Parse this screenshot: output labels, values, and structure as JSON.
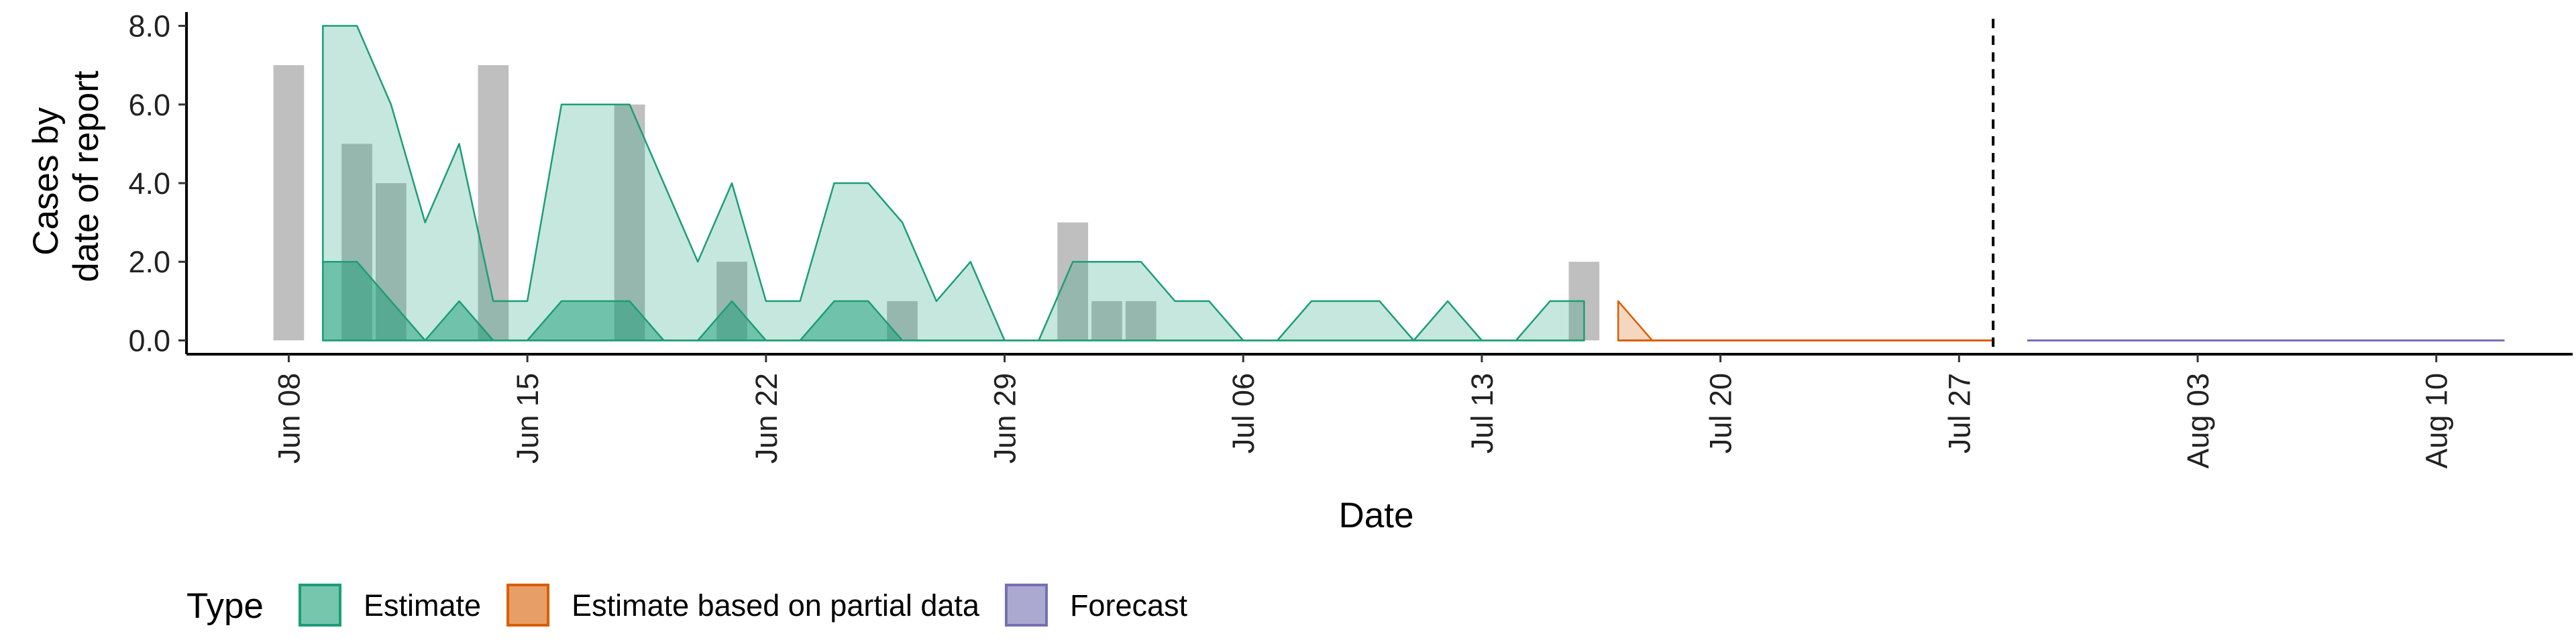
{
  "chart_data": {
    "type": "area",
    "xlabel": "Date",
    "ylabel": [
      "Cases by",
      "date of report"
    ],
    "x_ticks": [
      "Jun 08",
      "Jun 15",
      "Jun 22",
      "Jun 29",
      "Jul 06",
      "Jul 13",
      "Jul 20",
      "Jul 27",
      "Aug 03",
      "Aug 10"
    ],
    "y_ticks": [
      "0.0",
      "2.0",
      "4.0",
      "6.0",
      "8.0"
    ],
    "x_range": [
      "2020-06-05",
      "2020-08-14"
    ],
    "ylim": [
      -0.35,
      8.35
    ],
    "grid": false,
    "data_cutoff_line": "2020-07-28",
    "reported_cases": [
      {
        "date": "2020-06-08",
        "cases": 7
      },
      {
        "date": "2020-06-09",
        "cases": 0
      },
      {
        "date": "2020-06-10",
        "cases": 5
      },
      {
        "date": "2020-06-11",
        "cases": 4
      },
      {
        "date": "2020-06-12",
        "cases": 0
      },
      {
        "date": "2020-06-13",
        "cases": 0
      },
      {
        "date": "2020-06-14",
        "cases": 7
      },
      {
        "date": "2020-06-15",
        "cases": 0
      },
      {
        "date": "2020-06-16",
        "cases": 0
      },
      {
        "date": "2020-06-17",
        "cases": 0
      },
      {
        "date": "2020-06-18",
        "cases": 6
      },
      {
        "date": "2020-06-19",
        "cases": 0
      },
      {
        "date": "2020-06-20",
        "cases": 0
      },
      {
        "date": "2020-06-21",
        "cases": 2
      },
      {
        "date": "2020-06-22",
        "cases": 0
      },
      {
        "date": "2020-06-23",
        "cases": 0
      },
      {
        "date": "2020-06-24",
        "cases": 0
      },
      {
        "date": "2020-06-25",
        "cases": 0
      },
      {
        "date": "2020-06-26",
        "cases": 1
      },
      {
        "date": "2020-06-27",
        "cases": 0
      },
      {
        "date": "2020-06-28",
        "cases": 0
      },
      {
        "date": "2020-06-29",
        "cases": 0
      },
      {
        "date": "2020-06-30",
        "cases": 0
      },
      {
        "date": "2020-07-01",
        "cases": 3
      },
      {
        "date": "2020-07-02",
        "cases": 1
      },
      {
        "date": "2020-07-03",
        "cases": 1
      },
      {
        "date": "2020-07-04",
        "cases": 0
      },
      {
        "date": "2020-07-05",
        "cases": 0
      },
      {
        "date": "2020-07-06",
        "cases": 0
      },
      {
        "date": "2020-07-07",
        "cases": 0
      },
      {
        "date": "2020-07-08",
        "cases": 0
      },
      {
        "date": "2020-07-09",
        "cases": 0
      },
      {
        "date": "2020-07-10",
        "cases": 0
      },
      {
        "date": "2020-07-11",
        "cases": 0
      },
      {
        "date": "2020-07-12",
        "cases": 0
      },
      {
        "date": "2020-07-13",
        "cases": 0
      },
      {
        "date": "2020-07-14",
        "cases": 0
      },
      {
        "date": "2020-07-15",
        "cases": 0
      },
      {
        "date": "2020-07-16",
        "cases": 2
      }
    ],
    "series": [
      {
        "name": "Estimate",
        "color": "#1B9E77",
        "points": [
          {
            "date": "2020-06-09",
            "lower": 0,
            "upper": 2,
            "outer_lower": 0,
            "outer_upper": 8
          },
          {
            "date": "2020-06-10",
            "lower": 0,
            "upper": 2,
            "outer_lower": 0,
            "outer_upper": 8
          },
          {
            "date": "2020-06-11",
            "lower": 0,
            "upper": 1,
            "outer_lower": 0,
            "outer_upper": 6
          },
          {
            "date": "2020-06-12",
            "lower": 0,
            "upper": 0,
            "outer_lower": 0,
            "outer_upper": 3
          },
          {
            "date": "2020-06-13",
            "lower": 0,
            "upper": 1,
            "outer_lower": 0,
            "outer_upper": 5
          },
          {
            "date": "2020-06-14",
            "lower": 0,
            "upper": 0,
            "outer_lower": 0,
            "outer_upper": 1
          },
          {
            "date": "2020-06-15",
            "lower": 0,
            "upper": 0,
            "outer_lower": 0,
            "outer_upper": 1
          },
          {
            "date": "2020-06-16",
            "lower": 0,
            "upper": 1,
            "outer_lower": 0,
            "outer_upper": 6
          },
          {
            "date": "2020-06-17",
            "lower": 0,
            "upper": 1,
            "outer_lower": 0,
            "outer_upper": 6
          },
          {
            "date": "2020-06-18",
            "lower": 0,
            "upper": 1,
            "outer_lower": 0,
            "outer_upper": 6
          },
          {
            "date": "2020-06-19",
            "lower": 0,
            "upper": 0,
            "outer_lower": 0,
            "outer_upper": 4
          },
          {
            "date": "2020-06-20",
            "lower": 0,
            "upper": 0,
            "outer_lower": 0,
            "outer_upper": 2
          },
          {
            "date": "2020-06-21",
            "lower": 0,
            "upper": 1,
            "outer_lower": 0,
            "outer_upper": 4
          },
          {
            "date": "2020-06-22",
            "lower": 0,
            "upper": 0,
            "outer_lower": 0,
            "outer_upper": 1
          },
          {
            "date": "2020-06-23",
            "lower": 0,
            "upper": 0,
            "outer_lower": 0,
            "outer_upper": 1
          },
          {
            "date": "2020-06-24",
            "lower": 0,
            "upper": 1,
            "outer_lower": 0,
            "outer_upper": 4
          },
          {
            "date": "2020-06-25",
            "lower": 0,
            "upper": 1,
            "outer_lower": 0,
            "outer_upper": 4
          },
          {
            "date": "2020-06-26",
            "lower": 0,
            "upper": 0,
            "outer_lower": 0,
            "outer_upper": 3
          },
          {
            "date": "2020-06-27",
            "lower": 0,
            "upper": 0,
            "outer_lower": 0,
            "outer_upper": 1
          },
          {
            "date": "2020-06-28",
            "lower": 0,
            "upper": 0,
            "outer_lower": 0,
            "outer_upper": 2
          },
          {
            "date": "2020-06-29",
            "lower": 0,
            "upper": 0,
            "outer_lower": 0,
            "outer_upper": 0
          },
          {
            "date": "2020-06-30",
            "lower": 0,
            "upper": 0,
            "outer_lower": 0,
            "outer_upper": 0
          },
          {
            "date": "2020-07-01",
            "lower": 0,
            "upper": 0,
            "outer_lower": 0,
            "outer_upper": 2
          },
          {
            "date": "2020-07-02",
            "lower": 0,
            "upper": 0,
            "outer_lower": 0,
            "outer_upper": 2
          },
          {
            "date": "2020-07-03",
            "lower": 0,
            "upper": 0,
            "outer_lower": 0,
            "outer_upper": 2
          },
          {
            "date": "2020-07-04",
            "lower": 0,
            "upper": 0,
            "outer_lower": 0,
            "outer_upper": 1
          },
          {
            "date": "2020-07-05",
            "lower": 0,
            "upper": 0,
            "outer_lower": 0,
            "outer_upper": 1
          },
          {
            "date": "2020-07-06",
            "lower": 0,
            "upper": 0,
            "outer_lower": 0,
            "outer_upper": 0
          },
          {
            "date": "2020-07-07",
            "lower": 0,
            "upper": 0,
            "outer_lower": 0,
            "outer_upper": 0
          },
          {
            "date": "2020-07-08",
            "lower": 0,
            "upper": 0,
            "outer_lower": 0,
            "outer_upper": 1
          },
          {
            "date": "2020-07-09",
            "lower": 0,
            "upper": 0,
            "outer_lower": 0,
            "outer_upper": 1
          },
          {
            "date": "2020-07-10",
            "lower": 0,
            "upper": 0,
            "outer_lower": 0,
            "outer_upper": 1
          },
          {
            "date": "2020-07-11",
            "lower": 0,
            "upper": 0,
            "outer_lower": 0,
            "outer_upper": 0
          },
          {
            "date": "2020-07-12",
            "lower": 0,
            "upper": 0,
            "outer_lower": 0,
            "outer_upper": 1
          },
          {
            "date": "2020-07-13",
            "lower": 0,
            "upper": 0,
            "outer_lower": 0,
            "outer_upper": 0
          },
          {
            "date": "2020-07-14",
            "lower": 0,
            "upper": 0,
            "outer_lower": 0,
            "outer_upper": 0
          },
          {
            "date": "2020-07-15",
            "lower": 0,
            "upper": 0,
            "outer_lower": 0,
            "outer_upper": 1
          },
          {
            "date": "2020-07-16",
            "lower": 0,
            "upper": 0,
            "outer_lower": 0,
            "outer_upper": 1
          }
        ]
      },
      {
        "name": "Estimate based on partial data",
        "color": "#D95F02",
        "points": [
          {
            "date": "2020-07-17",
            "lower": 0,
            "upper": 0,
            "outer_lower": 0,
            "outer_upper": 1
          },
          {
            "date": "2020-07-18",
            "lower": 0,
            "upper": 0,
            "outer_lower": 0,
            "outer_upper": 0
          },
          {
            "date": "2020-07-28",
            "lower": 0,
            "upper": 0,
            "outer_lower": 0,
            "outer_upper": 0
          }
        ]
      },
      {
        "name": "Forecast",
        "color": "#7570B3",
        "points": [
          {
            "date": "2020-07-29",
            "lower": 0,
            "upper": 0,
            "outer_lower": 0,
            "outer_upper": 0
          },
          {
            "date": "2020-08-12",
            "lower": 0,
            "upper": 0,
            "outer_lower": 0,
            "outer_upper": 0
          }
        ]
      }
    ],
    "legend": {
      "title": "Type",
      "position": "bottom",
      "items": [
        "Estimate",
        "Estimate based on partial data",
        "Forecast"
      ]
    }
  }
}
